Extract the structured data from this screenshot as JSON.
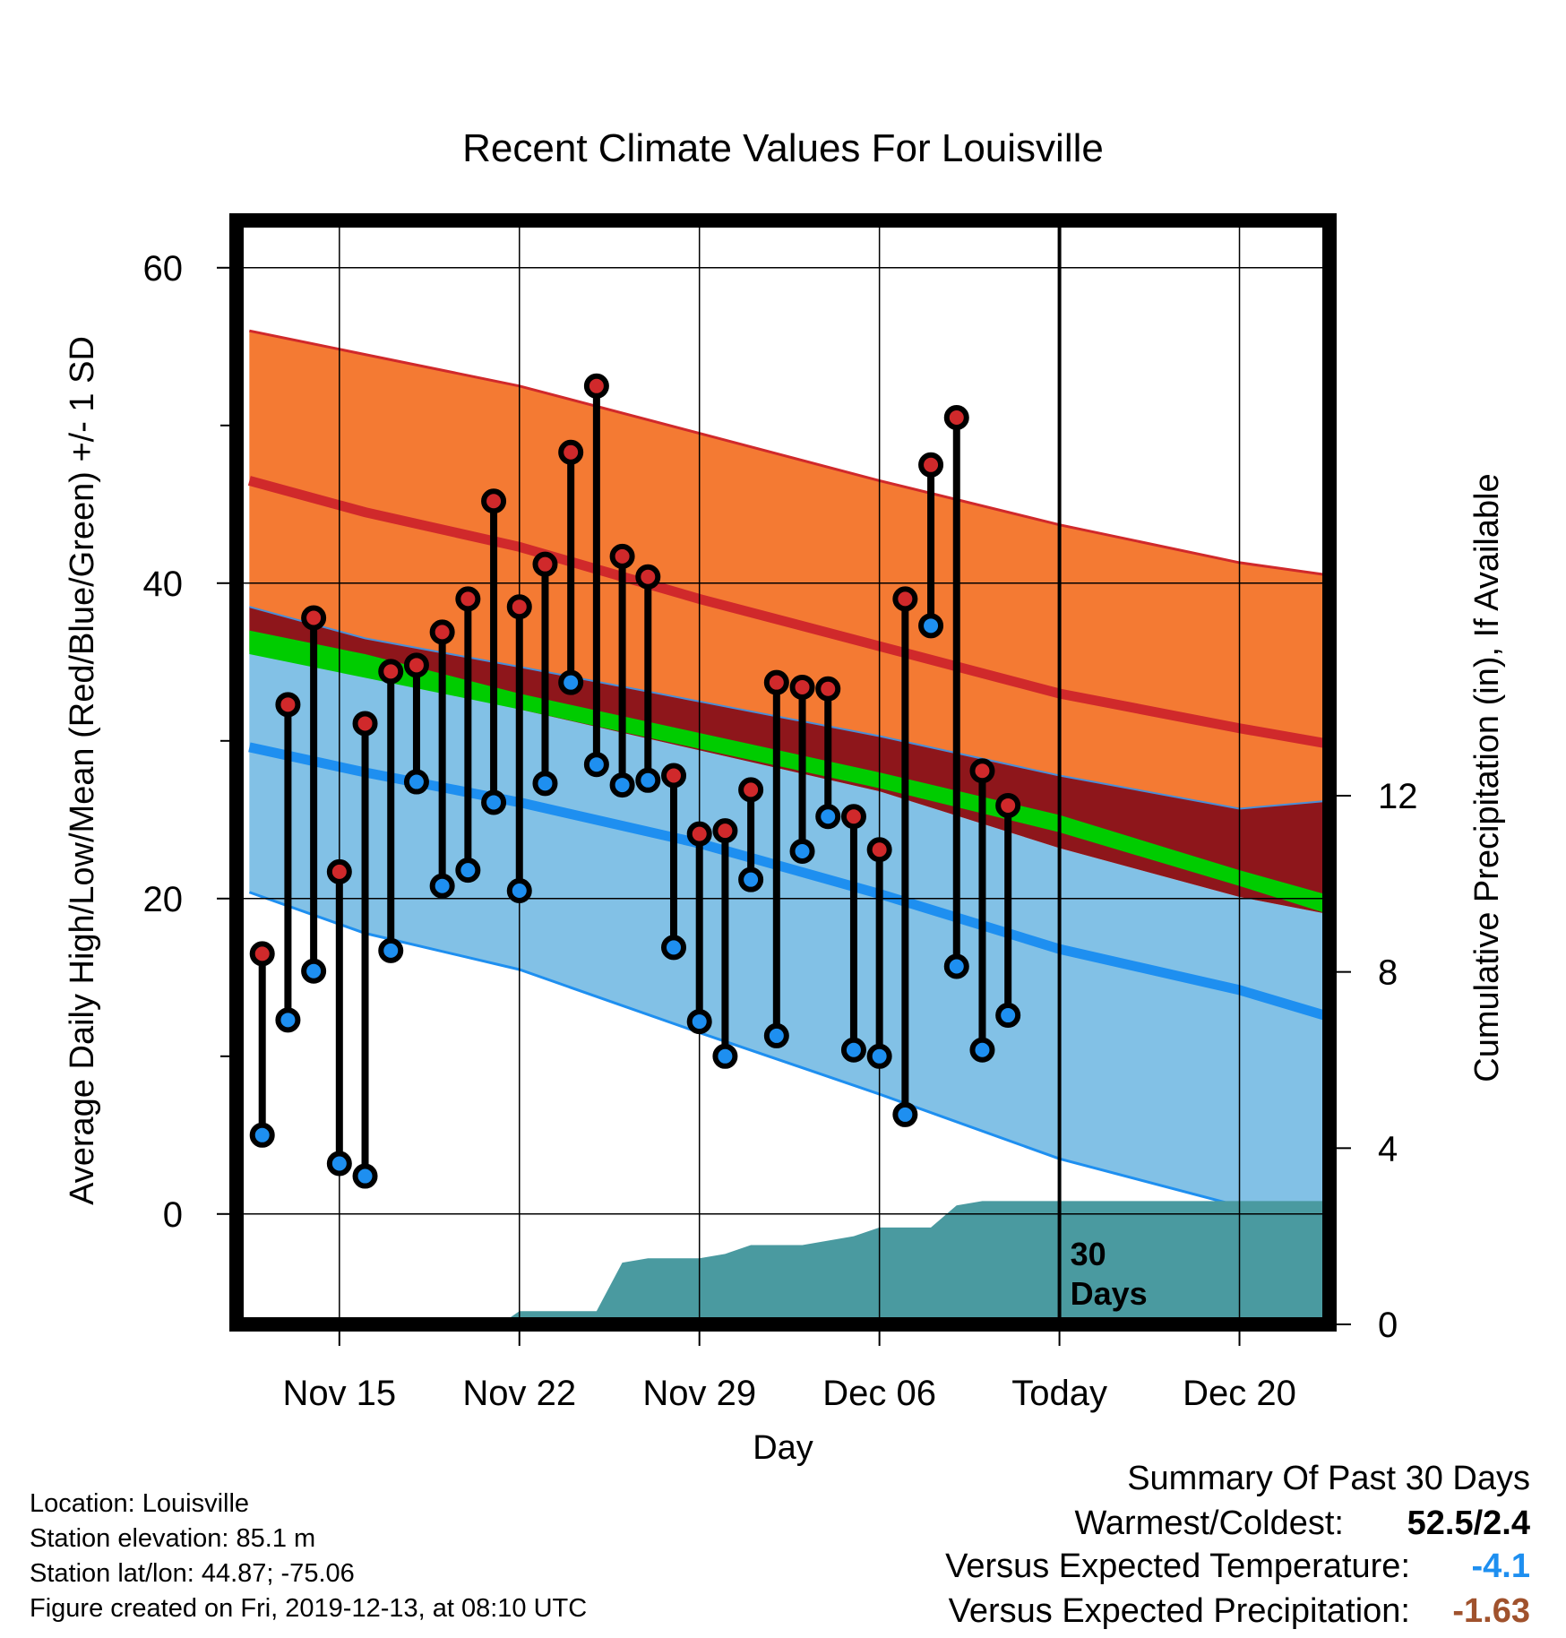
{
  "chart_data": {
    "type": "line",
    "title": "Recent Climate Values For Louisville",
    "xlabel": "Day",
    "ylabel": "Average Daily High/Low/Mean (Red/Blue/Green) +/- 1 SD",
    "y2label": "Cumulative Precipitation (in), If Available",
    "xlim": [
      -2,
      40.5
    ],
    "ylim": [
      -7,
      63
    ],
    "y2lim": [
      0,
      25
    ],
    "x_ticks": [
      {
        "x": 2,
        "label": "Nov 15"
      },
      {
        "x": 9,
        "label": "Nov 22"
      },
      {
        "x": 16,
        "label": "Nov 29"
      },
      {
        "x": 23,
        "label": "Dec 06"
      },
      {
        "x": 30,
        "label": "Today"
      },
      {
        "x": 37,
        "label": "Dec 20"
      }
    ],
    "y_ticks_major": [
      0,
      20,
      40,
      60
    ],
    "y_ticks_minor": [
      10,
      30,
      50
    ],
    "y2_ticks": [
      0,
      4,
      8,
      12
    ],
    "today_x": 30,
    "today_label_1": "30",
    "today_label_2": "Days",
    "colors": {
      "high_band": "#f47a33",
      "high_mean": "#d0292b",
      "low_band": "#82c1e6",
      "low_mean": "#1e8ff0",
      "overlap_band": "#8e161b",
      "mean_band": "#00cc00",
      "precip": "#4a9aa0",
      "obs_high_marker": "#d0292b",
      "obs_low_marker": "#1e8ff0"
    },
    "normals_x": [
      -1.5,
      3,
      9,
      16,
      23,
      30,
      37,
      40.5
    ],
    "normal_high_upper": [
      56,
      54.5,
      52.5,
      49.5,
      46.5,
      43.7,
      41.3,
      40.5
    ],
    "normal_high_mean": [
      46.5,
      44.5,
      42.3,
      39,
      36,
      33,
      30.8,
      29.8
    ],
    "normal_high_lower": [
      38.5,
      36.5,
      34.7,
      32.5,
      30.3,
      27.8,
      25.7,
      26.2
    ],
    "normal_mean_upper": [
      37,
      35.5,
      33,
      30.5,
      28,
      25.3,
      21.8,
      20.2
    ],
    "normal_mean_lower": [
      35.5,
      34,
      32,
      29.5,
      27,
      24.2,
      20.8,
      19
    ],
    "normal_low_upper": [
      35.7,
      34.5,
      32,
      29.4,
      26.8,
      23.2,
      20.1,
      19
    ],
    "normal_low_mean": [
      29.6,
      28,
      26.1,
      23.5,
      20.3,
      16.8,
      14.2,
      12.5
    ],
    "normal_low_lower": [
      20.4,
      17.8,
      15.5,
      11.5,
      7.6,
      3.5,
      0.5,
      -1.5
    ],
    "observed_x": [
      -1,
      0,
      1,
      2,
      3,
      4,
      5,
      6,
      7,
      8,
      9,
      10,
      11,
      12,
      13,
      14,
      15,
      16,
      17,
      18,
      19,
      20,
      21,
      22,
      23,
      24,
      25,
      26,
      27,
      28,
      29
    ],
    "observed_high": [
      16.5,
      32.3,
      37.8,
      21.7,
      31.1,
      34.4,
      34.8,
      36.9,
      39,
      45.2,
      38.5,
      41.2,
      48.3,
      52.5,
      41.7,
      40.4,
      27.8,
      24.1,
      24.3,
      26.9,
      33.7,
      33.4,
      33.3,
      25.2,
      23.1,
      39,
      47.5,
      50.5,
      28.1,
      25.9,
      null
    ],
    "observed_low": [
      5,
      12.3,
      15.4,
      3.2,
      2.4,
      16.7,
      27.4,
      20.8,
      21.8,
      26.1,
      20.5,
      27.3,
      33.7,
      28.5,
      27.2,
      27.5,
      16.9,
      12.2,
      10,
      21.2,
      11.3,
      23,
      25.2,
      10.4,
      10,
      6.3,
      37.3,
      15.7,
      10.4,
      12.6,
      null
    ],
    "precip_x": [
      -1.5,
      6,
      8.5,
      9,
      12,
      13,
      14,
      16,
      17,
      18,
      20,
      22,
      23,
      25,
      26,
      27,
      30,
      40.5
    ],
    "precip_cumulative": [
      0,
      0,
      0.1,
      0.3,
      0.3,
      1.4,
      1.5,
      1.5,
      1.6,
      1.8,
      1.8,
      2.0,
      2.2,
      2.2,
      2.7,
      2.8,
      2.8,
      2.8
    ]
  },
  "footer": {
    "location": "Location: Louisville",
    "elevation": "Station elevation: 85.1 m",
    "latlon": "Station lat/lon: 44.87; -75.06",
    "created": "Figure created on Fri, 2019-12-13, at 08:10 UTC"
  },
  "summary": {
    "heading": "Summary Of Past 30 Days",
    "warm_cold_label": "Warmest/Coldest:",
    "warm_cold_value": "52.5/2.4",
    "temp_label": "Versus Expected Temperature:",
    "temp_value": "-4.1",
    "temp_color": "#1e8ff0",
    "precip_label": "Versus Expected Precipitation:",
    "precip_value": "-1.63",
    "precip_color": "#a0522d"
  }
}
